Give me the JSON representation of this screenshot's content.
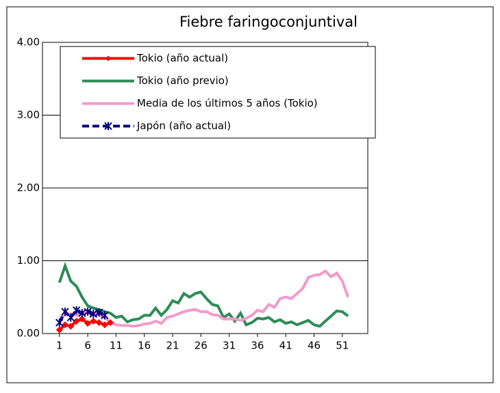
{
  "chart_data": {
    "type": "line",
    "title": "Fiebre faringoconjuntival",
    "x": [
      1,
      2,
      3,
      4,
      5,
      6,
      7,
      8,
      9,
      10,
      11,
      12,
      13,
      14,
      15,
      16,
      17,
      18,
      19,
      20,
      21,
      22,
      23,
      24,
      25,
      26,
      27,
      28,
      29,
      30,
      31,
      32,
      33,
      34,
      35,
      36,
      37,
      38,
      39,
      40,
      41,
      42,
      43,
      44,
      45,
      46,
      47,
      48,
      49,
      50,
      51,
      52
    ],
    "xlim": [
      -2,
      55.5
    ],
    "xticks": [
      1,
      6,
      11,
      16,
      21,
      26,
      31,
      36,
      41,
      46,
      51
    ],
    "ylim": [
      0,
      4
    ],
    "yticks": [
      {
        "value": 0,
        "label": "0.00"
      },
      {
        "value": 1,
        "label": "1.00"
      },
      {
        "value": 2,
        "label": "2.00"
      },
      {
        "value": 3,
        "label": "3.00"
      },
      {
        "value": 4,
        "label": "4.00"
      }
    ],
    "grid": true,
    "legend": "top-left",
    "series": [
      {
        "name": "Tokio (año previo)",
        "color": "#2e8b57",
        "values": [
          0.7,
          0.93,
          0.72,
          0.65,
          0.5,
          0.38,
          0.35,
          0.33,
          0.3,
          0.28,
          0.22,
          0.24,
          0.16,
          0.19,
          0.2,
          0.25,
          0.25,
          0.35,
          0.25,
          0.33,
          0.45,
          0.42,
          0.55,
          0.5,
          0.55,
          0.57,
          0.48,
          0.4,
          0.38,
          0.22,
          0.27,
          0.17,
          0.28,
          0.12,
          0.15,
          0.21,
          0.2,
          0.22,
          0.16,
          0.19,
          0.14,
          0.16,
          0.12,
          0.15,
          0.18,
          0.12,
          0.1,
          0.17,
          0.24,
          0.31,
          0.3,
          0.24
        ]
      },
      {
        "name": "Media de los últimos 5 años (Tokio)",
        "color": "#f49ac9",
        "values": [
          0.22,
          0.25,
          0.27,
          0.25,
          0.28,
          0.28,
          0.28,
          0.25,
          0.22,
          0.15,
          0.12,
          0.11,
          0.11,
          0.1,
          0.11,
          0.13,
          0.14,
          0.17,
          0.14,
          0.22,
          0.24,
          0.27,
          0.3,
          0.32,
          0.33,
          0.3,
          0.3,
          0.26,
          0.25,
          0.2,
          0.2,
          0.2,
          0.18,
          0.21,
          0.25,
          0.32,
          0.3,
          0.4,
          0.36,
          0.48,
          0.5,
          0.48,
          0.55,
          0.62,
          0.77,
          0.8,
          0.81,
          0.86,
          0.78,
          0.83,
          0.72,
          0.5
        ]
      },
      {
        "name": "Tokio (año actual)",
        "color": "#ff0000",
        "marker": "diamond",
        "values": [
          0.05,
          0.12,
          0.1,
          0.17,
          0.2,
          0.14,
          0.17,
          0.15,
          0.12,
          0.15,
          null,
          null,
          null,
          null,
          null,
          null,
          null,
          null,
          null,
          null,
          null,
          null,
          null,
          null,
          null,
          null,
          null,
          null,
          null,
          null,
          null,
          null,
          null,
          null,
          null,
          null,
          null,
          null,
          null,
          null,
          null,
          null,
          null,
          null,
          null,
          null,
          null,
          null,
          null,
          null,
          null,
          null
        ]
      },
      {
        "name": "Japón (año actual)",
        "color": "#000080",
        "marker": "asterisk",
        "dashed": true,
        "values": [
          0.15,
          0.3,
          0.22,
          0.32,
          0.28,
          0.3,
          0.27,
          0.29,
          0.25,
          null,
          null,
          null,
          null,
          null,
          null,
          null,
          null,
          null,
          null,
          null,
          null,
          null,
          null,
          null,
          null,
          null,
          null,
          null,
          null,
          null,
          null,
          null,
          null,
          null,
          null,
          null,
          null,
          null,
          null,
          null,
          null,
          null,
          null,
          null,
          null,
          null,
          null,
          null,
          null,
          null,
          null,
          null
        ]
      }
    ],
    "legend_order": [
      2,
      0,
      1,
      3
    ]
  }
}
